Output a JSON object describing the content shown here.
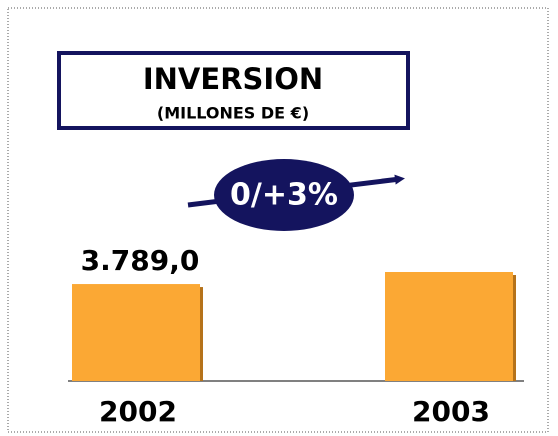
{
  "chart_data": {
    "type": "bar",
    "title": "INVERSION",
    "subtitle": "(MILLONES DE €)",
    "annotation": "0/+3%",
    "categories": [
      "2002",
      "2003"
    ],
    "values": [
      3789.0,
      4260
    ],
    "value_labels": [
      "3.789,0",
      null
    ],
    "color": "#fba834"
  }
}
